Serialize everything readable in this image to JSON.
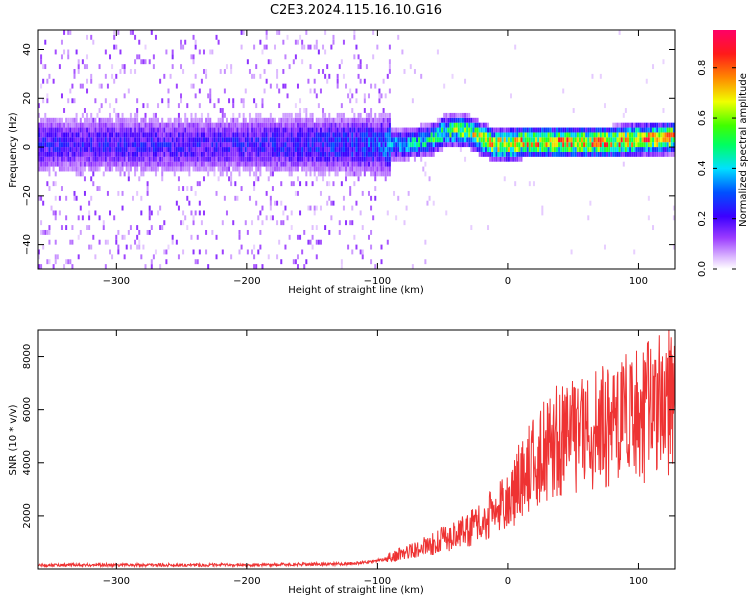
{
  "page": {
    "title": "C2E3.2024.115.16.10.G16"
  },
  "chart_data": [
    {
      "type": "heatmap",
      "title": "",
      "xlabel": "Height of straight line (km)",
      "ylabel": "Frequency (Hz)",
      "xlim": [
        -360,
        128
      ],
      "ylim": [
        -50,
        48
      ],
      "x_ticks": [
        -300,
        -200,
        -100,
        0,
        100
      ],
      "y_ticks": [
        -40,
        -20,
        0,
        20,
        40
      ],
      "grid": false,
      "colormap": "rainbow (purple-blue-cyan-green-yellow-red-magenta)",
      "colorbar": {
        "label": "Normalized spectral amplitude",
        "range": [
          0.0,
          0.95
        ],
        "ticks": [
          0.0,
          0.2,
          0.4,
          0.6,
          0.8
        ],
        "position": "right"
      },
      "ridge": {
        "x": [
          -360,
          -300,
          -200,
          -130,
          -100,
          -80,
          -60,
          -50,
          -40,
          -30,
          -20,
          -10,
          0,
          10,
          20,
          40,
          60,
          80,
          100,
          128
        ],
        "frequency": [
          0,
          0,
          0,
          0,
          0,
          0,
          2,
          5,
          6,
          5,
          2,
          0,
          0,
          1,
          1,
          1,
          1,
          1,
          2,
          3
        ],
        "peak_amplitude": [
          0.25,
          0.25,
          0.25,
          0.3,
          0.35,
          0.45,
          0.55,
          0.6,
          0.65,
          0.7,
          0.75,
          0.8,
          0.85,
          0.85,
          0.85,
          0.85,
          0.85,
          0.85,
          0.85,
          0.85
        ]
      }
    },
    {
      "type": "line",
      "title": "",
      "xlabel": "Height of straight line (km)",
      "ylabel": "SNR (10 * v/v)",
      "xlim": [
        -360,
        128
      ],
      "ylim": [
        0,
        9000
      ],
      "x_ticks": [
        -300,
        -200,
        -100,
        0,
        100
      ],
      "y_ticks": [
        2000,
        4000,
        6000,
        8000
      ],
      "grid": false,
      "color": "#ee3333",
      "series": [
        {
          "x": [
            -360,
            -300,
            -200,
            -120,
            -100,
            -80,
            -60,
            -40,
            -20,
            -10,
            0,
            10,
            20,
            30,
            40,
            60,
            80,
            100,
            110,
            128
          ],
          "y": [
            150,
            150,
            150,
            200,
            300,
            600,
            900,
            1300,
            1700,
            2200,
            2500,
            3400,
            4000,
            4500,
            4900,
            5200,
            5500,
            5700,
            6000,
            6300
          ]
        }
      ]
    }
  ]
}
